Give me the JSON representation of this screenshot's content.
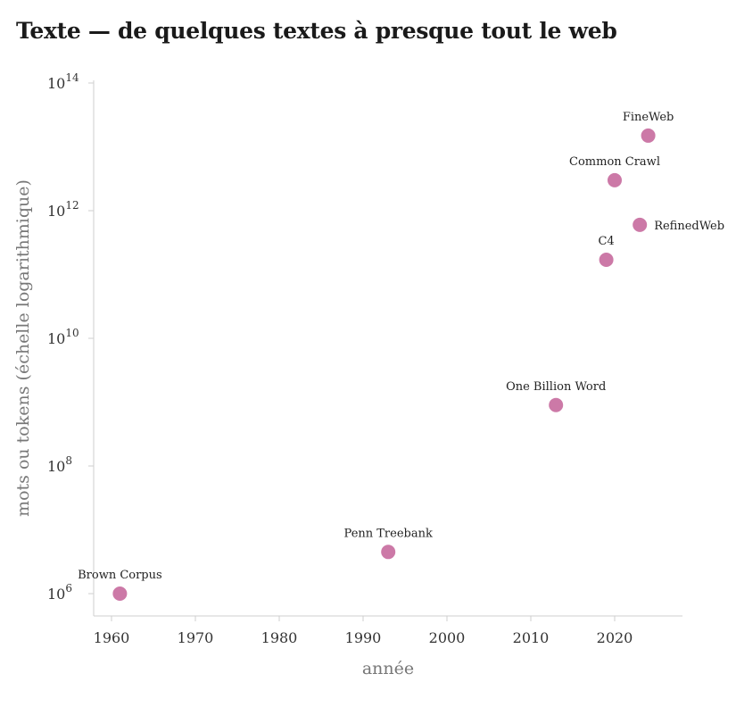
{
  "title": "Texte — de quelques textes à presque tout le web",
  "chart_data": {
    "type": "scatter",
    "title": "Texte — de quelques textes à presque tout le web",
    "xlabel": "année",
    "ylabel": "mots ou tokens (échelle logarithmique)",
    "xlim": [
      1958,
      2028
    ],
    "ylim": [
      1000000,
      100000000000000
    ],
    "yscale": "log",
    "grid": false,
    "x_ticks": [
      1960,
      1970,
      1980,
      1990,
      2000,
      2010,
      2020
    ],
    "y_ticks": [
      {
        "base": "10",
        "exp": "6"
      },
      {
        "base": "10",
        "exp": "8"
      },
      {
        "base": "10",
        "exp": "10"
      },
      {
        "base": "10",
        "exp": "12"
      },
      {
        "base": "10",
        "exp": "14"
      }
    ],
    "color": "#cc79a7",
    "points": [
      {
        "label": "Brown Corpus",
        "x": 1961,
        "y": 1000000,
        "label_pos": "above"
      },
      {
        "label": "Penn Treebank",
        "x": 1993,
        "y": 4500000,
        "label_pos": "above"
      },
      {
        "label": "One Billion Word",
        "x": 2013,
        "y": 900000000,
        "label_pos": "above"
      },
      {
        "label": "C4",
        "x": 2019,
        "y": 170000000000,
        "label_pos": "above"
      },
      {
        "label": "RefinedWeb",
        "x": 2023,
        "y": 600000000000,
        "label_pos": "right"
      },
      {
        "label": "Common Crawl",
        "x": 2020,
        "y": 3000000000000,
        "label_pos": "above"
      },
      {
        "label": "FineWeb",
        "x": 2024,
        "y": 15000000000000,
        "label_pos": "above"
      }
    ]
  }
}
